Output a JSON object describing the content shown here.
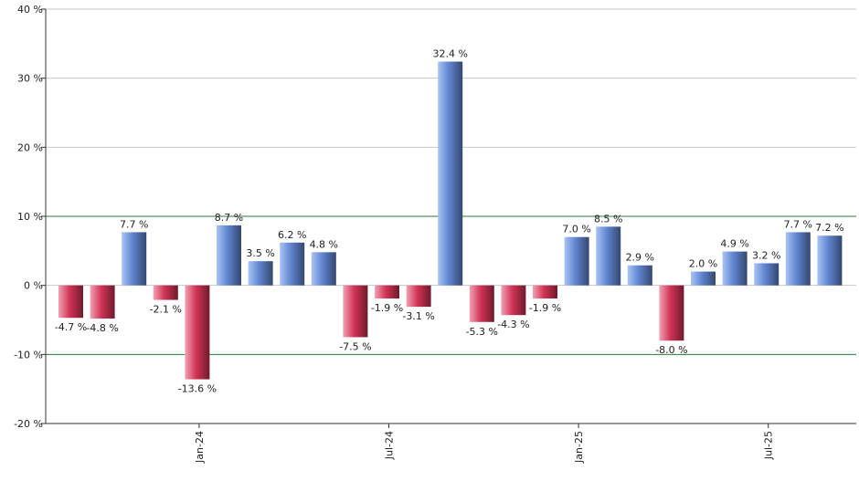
{
  "chart_data": {
    "type": "bar",
    "title": "",
    "xlabel": "",
    "ylabel": "",
    "ylim": [
      -20,
      40
    ],
    "y_ticks": [
      40,
      30,
      20,
      10,
      0,
      -10,
      -20
    ],
    "y_tick_suffix": " %",
    "reference_lines": [
      10,
      -10
    ],
    "x_tick_labels": [
      {
        "label": "Jan-24",
        "after_index": 4
      },
      {
        "label": "Jul-24",
        "after_index": 10
      },
      {
        "label": "Jan-25",
        "after_index": 16
      },
      {
        "label": "Jul-25",
        "after_index": 22
      }
    ],
    "values": [
      -4.7,
      -4.8,
      7.7,
      -2.1,
      -13.6,
      8.7,
      3.5,
      6.2,
      4.8,
      -7.5,
      -1.9,
      -3.1,
      32.4,
      -5.3,
      -4.3,
      -1.9,
      7.0,
      8.5,
      2.9,
      -8.0,
      2.0,
      4.9,
      3.2,
      7.7,
      7.2
    ],
    "value_labels": [
      "-4.7 %",
      "-4.8 %",
      "7.7 %",
      "-2.1 %",
      "-13.6 %",
      "8.7 %",
      "3.5 %",
      "6.2 %",
      "4.8 %",
      "-7.5 %",
      "-1.9 %",
      "-3.1 %",
      "32.4 %",
      "-5.3 %",
      "-4.3 %",
      "-1.9 %",
      "7.0 %",
      "8.5 %",
      "2.9 %",
      "-8.0 %",
      "2.0 %",
      "4.9 %",
      "3.2 %",
      "7.7 %",
      "7.2 %"
    ],
    "colors": {
      "positive_light": "#a9c4f5",
      "positive_mid": "#5f84cf",
      "positive_dark": "#34476e",
      "negative_light": "#f0a3b3",
      "negative_mid": "#d23356",
      "negative_dark": "#6e1b2c",
      "grid": "#c8c8c8",
      "reference_line": "#2e7d32",
      "axis": "#333333"
    }
  }
}
